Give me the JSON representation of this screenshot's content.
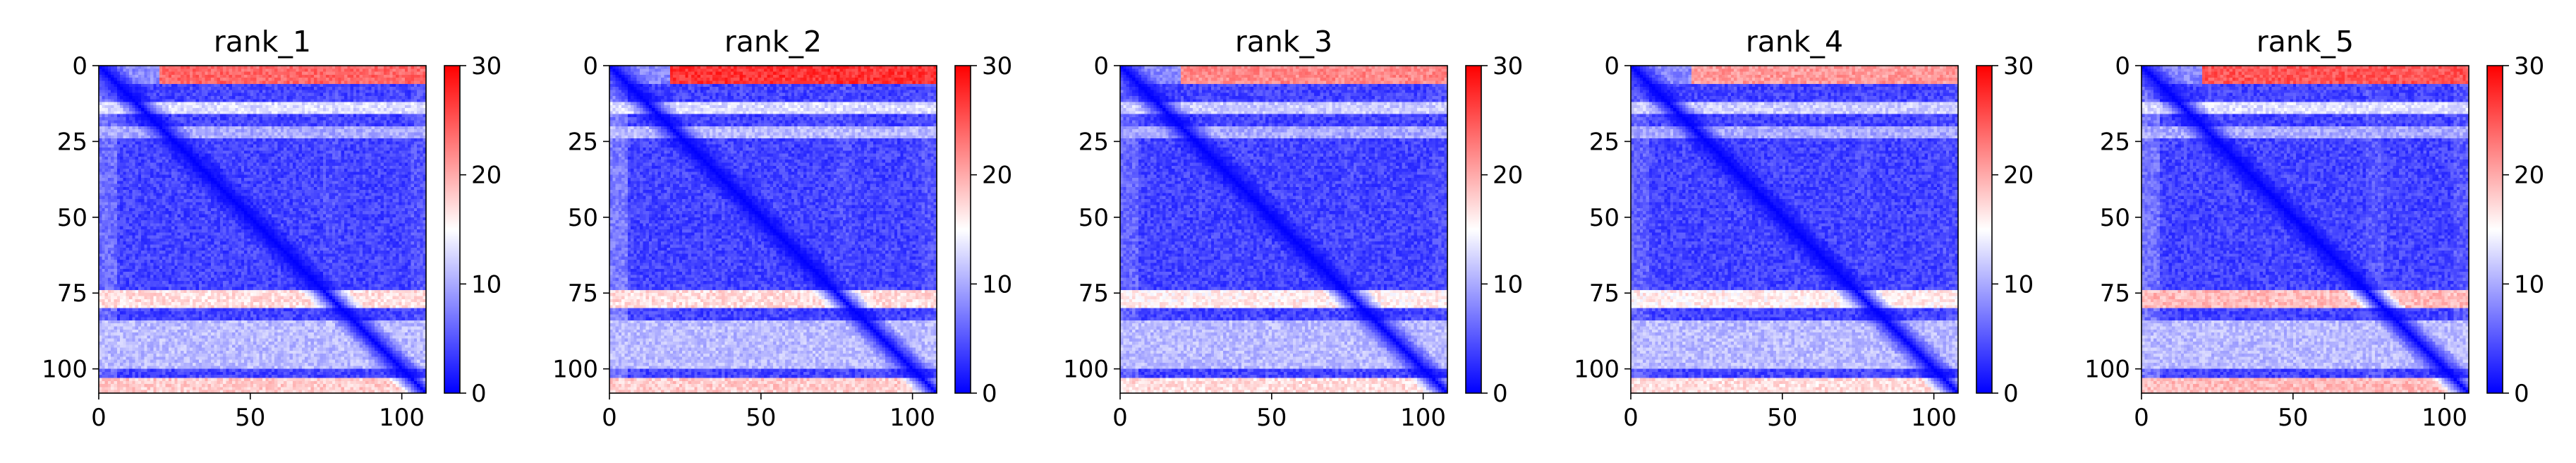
{
  "chart_data": [
    {
      "type": "heatmap",
      "title": "rank_1",
      "xlabel": "",
      "ylabel": "",
      "xlim": [
        0,
        108
      ],
      "ylim": [
        108,
        0
      ],
      "x_ticks": [
        0,
        50,
        100
      ],
      "y_ticks": [
        0,
        25,
        50,
        75,
        100
      ],
      "colorbar": {
        "colormap": "bwr",
        "min": 0,
        "max": 30,
        "ticks": [
          0,
          10,
          20,
          30
        ],
        "colors": [
          "#0000ff",
          "#ffffff",
          "#ff0000"
        ]
      },
      "pattern": {
        "diagonal_value": 0,
        "background_value": 4,
        "hot_rows": [
          [
            0,
            6,
            24
          ],
          [
            12,
            16,
            13
          ],
          [
            20,
            24,
            10
          ],
          [
            74,
            80,
            17
          ],
          [
            84,
            100,
            11
          ],
          [
            103,
            108,
            18
          ]
        ],
        "cool_band": [
          28,
          70,
          3
        ]
      }
    },
    {
      "type": "heatmap",
      "title": "rank_2",
      "xlabel": "",
      "ylabel": "",
      "xlim": [
        0,
        108
      ],
      "ylim": [
        108,
        0
      ],
      "x_ticks": [
        0,
        50,
        100
      ],
      "y_ticks": [
        0,
        25,
        50,
        75,
        100
      ],
      "colorbar": {
        "colormap": "bwr",
        "min": 0,
        "max": 30,
        "ticks": [
          0,
          10,
          20,
          30
        ],
        "colors": [
          "#0000ff",
          "#ffffff",
          "#ff0000"
        ]
      },
      "pattern": {
        "diagonal_value": 0,
        "background_value": 4,
        "hot_rows": [
          [
            0,
            6,
            27
          ],
          [
            12,
            16,
            13
          ],
          [
            20,
            24,
            11
          ],
          [
            74,
            80,
            17
          ],
          [
            84,
            100,
            11
          ],
          [
            103,
            108,
            18
          ]
        ],
        "cool_band": [
          28,
          70,
          3
        ]
      }
    },
    {
      "type": "heatmap",
      "title": "rank_3",
      "xlabel": "",
      "ylabel": "",
      "xlim": [
        0,
        108
      ],
      "ylim": [
        108,
        0
      ],
      "x_ticks": [
        0,
        50,
        100
      ],
      "y_ticks": [
        0,
        25,
        50,
        75,
        100
      ],
      "colorbar": {
        "colormap": "bwr",
        "min": 0,
        "max": 30,
        "ticks": [
          0,
          10,
          20,
          30
        ],
        "colors": [
          "#0000ff",
          "#ffffff",
          "#ff0000"
        ]
      },
      "pattern": {
        "diagonal_value": 0,
        "background_value": 4,
        "hot_rows": [
          [
            0,
            6,
            22
          ],
          [
            12,
            16,
            12
          ],
          [
            20,
            24,
            10
          ],
          [
            74,
            80,
            16
          ],
          [
            84,
            100,
            11
          ],
          [
            103,
            108,
            17
          ]
        ],
        "cool_band": [
          28,
          70,
          3
        ]
      }
    },
    {
      "type": "heatmap",
      "title": "rank_4",
      "xlabel": "",
      "ylabel": "",
      "xlim": [
        0,
        108
      ],
      "ylim": [
        108,
        0
      ],
      "x_ticks": [
        0,
        50,
        100
      ],
      "y_ticks": [
        0,
        25,
        50,
        75,
        100
      ],
      "colorbar": {
        "colormap": "bwr",
        "min": 0,
        "max": 30,
        "ticks": [
          0,
          10,
          20,
          30
        ],
        "colors": [
          "#0000ff",
          "#ffffff",
          "#ff0000"
        ]
      },
      "pattern": {
        "diagonal_value": 0,
        "background_value": 4,
        "hot_rows": [
          [
            0,
            6,
            21
          ],
          [
            12,
            16,
            12
          ],
          [
            20,
            24,
            10
          ],
          [
            74,
            80,
            16
          ],
          [
            84,
            100,
            11
          ],
          [
            103,
            108,
            17
          ]
        ],
        "cool_band": [
          28,
          70,
          3
        ]
      }
    },
    {
      "type": "heatmap",
      "title": "rank_5",
      "xlabel": "",
      "ylabel": "",
      "xlim": [
        0,
        108
      ],
      "ylim": [
        108,
        0
      ],
      "x_ticks": [
        0,
        50,
        100
      ],
      "y_ticks": [
        0,
        25,
        50,
        75,
        100
      ],
      "colorbar": {
        "colormap": "bwr",
        "min": 0,
        "max": 30,
        "ticks": [
          0,
          10,
          20,
          30
        ],
        "colors": [
          "#0000ff",
          "#ffffff",
          "#ff0000"
        ]
      },
      "pattern": {
        "diagonal_value": 0,
        "background_value": 4,
        "hot_rows": [
          [
            0,
            6,
            25
          ],
          [
            12,
            16,
            13
          ],
          [
            20,
            24,
            10
          ],
          [
            74,
            80,
            19
          ],
          [
            84,
            100,
            11
          ],
          [
            103,
            108,
            19
          ]
        ],
        "cool_band": [
          28,
          70,
          3
        ]
      }
    }
  ]
}
